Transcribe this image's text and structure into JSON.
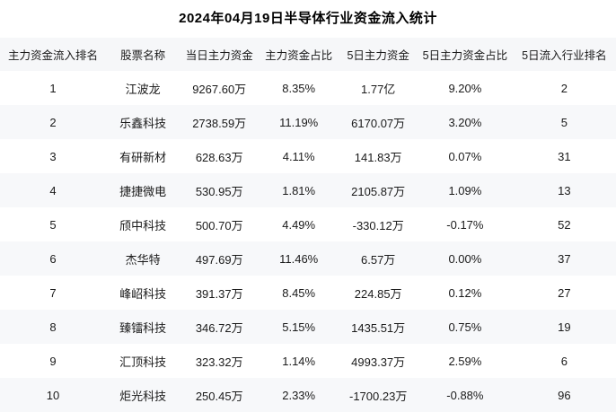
{
  "chart_data": {
    "type": "table",
    "title": "2024年04月19日半导体行业资金流入统计",
    "columns": [
      "主力资金流入排名",
      "股票名称",
      "当日主力资金",
      "主力资金占比",
      "5日主力资金",
      "5日主力资金占比",
      "5日流入行业排名"
    ],
    "rows": [
      [
        "1",
        "江波龙",
        "9267.60万",
        "8.35%",
        "1.77亿",
        "9.20%",
        "2"
      ],
      [
        "2",
        "乐鑫科技",
        "2738.59万",
        "11.19%",
        "6170.07万",
        "3.20%",
        "5"
      ],
      [
        "3",
        "有研新材",
        "628.63万",
        "4.11%",
        "141.83万",
        "0.07%",
        "31"
      ],
      [
        "4",
        "捷捷微电",
        "530.95万",
        "1.81%",
        "2105.87万",
        "1.09%",
        "13"
      ],
      [
        "5",
        "颀中科技",
        "500.70万",
        "4.49%",
        "-330.12万",
        "-0.17%",
        "52"
      ],
      [
        "6",
        "杰华特",
        "497.69万",
        "11.46%",
        "6.57万",
        "0.00%",
        "37"
      ],
      [
        "7",
        "峰岹科技",
        "391.37万",
        "8.45%",
        "224.85万",
        "0.12%",
        "27"
      ],
      [
        "8",
        "臻镭科技",
        "346.72万",
        "5.15%",
        "1435.51万",
        "0.75%",
        "19"
      ],
      [
        "9",
        "汇顶科技",
        "323.32万",
        "1.14%",
        "4993.37万",
        "2.59%",
        "6"
      ],
      [
        "10",
        "炬光科技",
        "250.45万",
        "2.33%",
        "-1700.23万",
        "-0.88%",
        "96"
      ]
    ],
    "layout": {
      "grid": false,
      "row_striping": "even-rows-shaded",
      "text_align": "center"
    }
  },
  "colors": {
    "background": "#ffffff",
    "header_bg": "#f6f7f9",
    "stripe_bg": "#f7f8fa",
    "text": "#1a1a1a",
    "title_text": "#000000"
  }
}
